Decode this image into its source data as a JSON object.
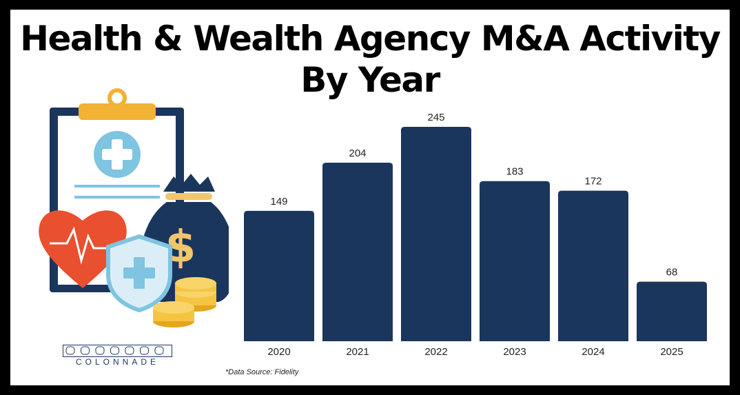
{
  "title": {
    "line1": "Health & Wealth Agency M&A Activity",
    "line2": "By Year"
  },
  "source_note": "*Data Source: Fidelity",
  "logo": {
    "text": "COLONNADE"
  },
  "colors": {
    "bar": "#1b365d",
    "label": "#222222",
    "background": "#ffffff",
    "frame": "#000000"
  },
  "illustration": {
    "icons": [
      "clipboard-icon",
      "medical-cross-icon",
      "heart-rate-icon",
      "money-bag-icon",
      "dollar-sign-icon",
      "shield-cross-icon",
      "coin-stack-icon"
    ]
  },
  "chart_data": {
    "type": "bar",
    "categories": [
      "2020",
      "2021",
      "2022",
      "2023",
      "2024",
      "2025"
    ],
    "values": [
      149,
      204,
      245,
      183,
      172,
      68
    ],
    "title": "Health & Wealth Agency M&A Activity By Year",
    "xlabel": "",
    "ylabel": "",
    "ylim": [
      0,
      245
    ],
    "grid": false,
    "legend": "none",
    "data_labels": true
  }
}
